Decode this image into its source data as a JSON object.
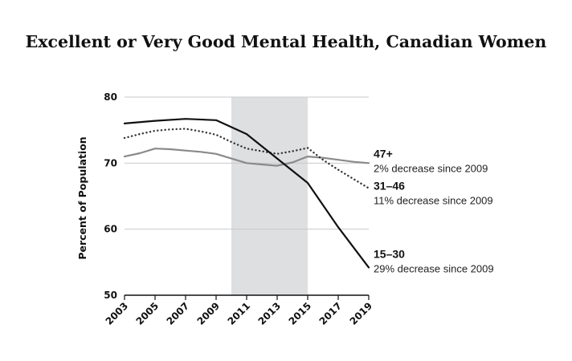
{
  "chart_data": {
    "type": "line",
    "title": "Excellent or Very Good Mental Health, Canadian Women",
    "ylabel": "Percent of Population",
    "xlabel": "",
    "ylim": [
      50,
      80
    ],
    "xlim": [
      2003,
      2019
    ],
    "yticks": [
      50,
      60,
      70,
      80
    ],
    "xticks": [
      "2003",
      "2005",
      "2007",
      "2009",
      "2011",
      "2013",
      "2015",
      "2017",
      "2019"
    ],
    "shaded_region": [
      2010,
      2015
    ],
    "grid": "horizontal",
    "series": [
      {
        "name": "47+",
        "note": "2% decrease since 2009",
        "color": "#8a8a8a",
        "dash": "solid",
        "x": [
          2003,
          2004,
          2005,
          2006,
          2007,
          2008,
          2009,
          2010,
          2011,
          2012,
          2013,
          2014,
          2015,
          2016,
          2017,
          2018,
          2019
        ],
        "values": [
          71.0,
          71.5,
          72.2,
          72.1,
          71.9,
          71.7,
          71.4,
          70.7,
          70.0,
          69.8,
          69.6,
          70.1,
          71.0,
          70.8,
          70.5,
          70.2,
          70.0
        ]
      },
      {
        "name": "31–46",
        "note": "11% decrease since 2009",
        "color": "#333333",
        "dash": "dotted",
        "x": [
          2003,
          2004,
          2005,
          2006,
          2007,
          2008,
          2009,
          2010,
          2011,
          2012,
          2013,
          2014,
          2015,
          2016,
          2017,
          2018,
          2019
        ],
        "values": [
          73.8,
          74.4,
          74.9,
          75.1,
          75.2,
          74.8,
          74.3,
          73.2,
          72.2,
          71.8,
          71.4,
          71.8,
          72.3,
          70.5,
          69.0,
          67.6,
          66.2
        ]
      },
      {
        "name": "15–30",
        "note": "29% decrease since 2009",
        "color": "#111111",
        "dash": "solid",
        "x": [
          2003,
          2005,
          2007,
          2009,
          2011,
          2013,
          2015,
          2017,
          2019
        ],
        "values": [
          76.0,
          76.4,
          76.7,
          76.5,
          74.4,
          70.7,
          67.0,
          60.3,
          54.2
        ]
      }
    ]
  }
}
